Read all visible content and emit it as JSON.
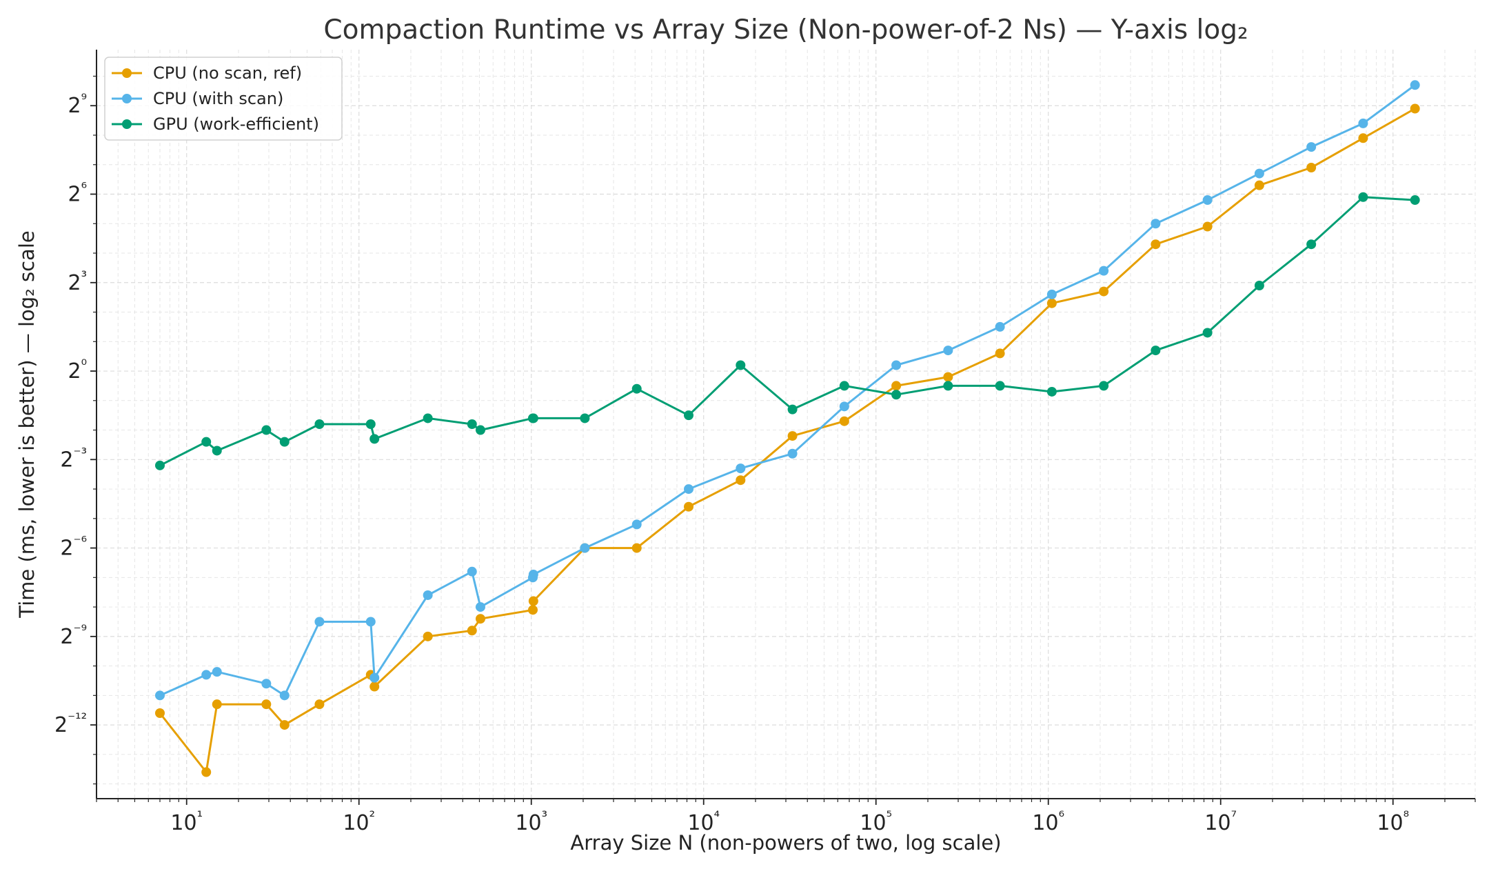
{
  "chart_data": {
    "type": "line",
    "title": "Compaction Runtime vs Array Size (Non-power-of-2 Ns) — Y-axis log₂",
    "xlabel": "Array Size N (non-powers of two, log scale)",
    "ylabel": "Time (ms, lower is better) — log₂ scale",
    "x_scale": "log10",
    "y_scale": "log2",
    "xlim": [
      3,
      300000000
    ],
    "ylim_log2": [
      -14.5,
      10.9
    ],
    "x_tick_labels": [
      "10¹",
      "10²",
      "10³",
      "10⁴",
      "10⁵",
      "10⁶",
      "10⁷",
      "10⁸"
    ],
    "x_tick_values": [
      10,
      100,
      1000,
      10000,
      100000,
      1000000,
      10000000,
      100000000
    ],
    "y_tick_labels": [
      "2⁹",
      "2⁶",
      "2³",
      "2⁰",
      "2⁻³",
      "2⁻⁶",
      "2⁻⁹",
      "2⁻¹²"
    ],
    "y_tick_values_log2": [
      9,
      6,
      3,
      0,
      -3,
      -6,
      -9,
      -12
    ],
    "grid": true,
    "legend_position": "top-left",
    "x": [
      7,
      13,
      15,
      29,
      37,
      59,
      117,
      123,
      251,
      453,
      507,
      1021,
      1029,
      2045,
      4093,
      8187,
      16381,
      32765,
      65531,
      131069,
      262141,
      524285,
      1048573,
      2097149,
      4194301,
      8388605,
      16777213,
      33554429,
      67108861,
      134217725
    ],
    "series": [
      {
        "name": "CPU (no scan, ref)",
        "color": "#E69F00",
        "values_log2": [
          -11.6,
          -13.6,
          -11.3,
          -11.3,
          -12.0,
          -11.3,
          -10.3,
          -10.7,
          -9.0,
          -8.8,
          -8.4,
          -8.1,
          -7.8,
          -6.0,
          -6.0,
          -4.6,
          -3.7,
          -2.2,
          -1.7,
          -0.5,
          -0.2,
          0.6,
          2.3,
          2.7,
          4.3,
          4.9,
          6.3,
          6.9,
          7.9,
          8.9
        ]
      },
      {
        "name": "CPU (with scan)",
        "color": "#56B4E9",
        "values_log2": [
          -11.0,
          -10.3,
          -10.2,
          -10.6,
          -11.0,
          -8.5,
          -8.5,
          -10.4,
          -7.6,
          -6.8,
          -8.0,
          -7.0,
          -6.9,
          -6.0,
          -5.2,
          -4.0,
          -3.3,
          -2.8,
          -1.2,
          0.2,
          0.7,
          1.5,
          2.6,
          3.4,
          5.0,
          5.8,
          6.7,
          7.6,
          8.4,
          9.7
        ]
      },
      {
        "name": "GPU (work-efficient)",
        "color": "#009E73",
        "values_log2": [
          -3.2,
          -2.4,
          -2.7,
          -2.0,
          -2.4,
          -1.8,
          -1.8,
          -2.3,
          -1.6,
          -1.8,
          -2.0,
          -1.6,
          -1.6,
          -1.6,
          -0.6,
          -1.5,
          0.2,
          -1.3,
          -0.5,
          -0.8,
          -0.5,
          -0.5,
          -0.7,
          -0.5,
          0.7,
          1.3,
          2.9,
          4.3,
          5.9,
          5.8
        ]
      }
    ]
  }
}
